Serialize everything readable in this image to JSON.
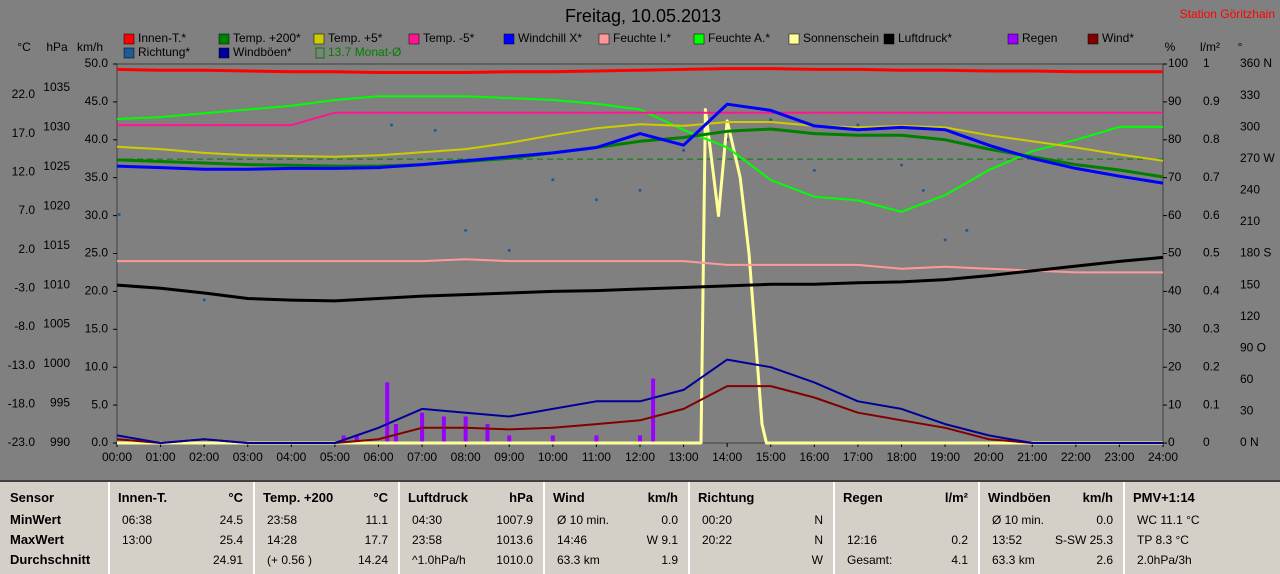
{
  "chart_data": {
    "type": "line",
    "title": "Freitag, 10.05.2013",
    "station": "Station Göritzhain",
    "xlim": [
      0,
      24
    ],
    "xticks": [
      {
        "value": 0,
        "label": "00:00"
      },
      {
        "value": 1,
        "label": "01:00"
      },
      {
        "value": 2,
        "label": "02:00"
      },
      {
        "value": 3,
        "label": "03:00"
      },
      {
        "value": 4,
        "label": "04:00"
      },
      {
        "value": 5,
        "label": "05:00"
      },
      {
        "value": 6,
        "label": "06:00"
      },
      {
        "value": 7,
        "label": "07:00"
      },
      {
        "value": 8,
        "label": "08:00"
      },
      {
        "value": 9,
        "label": "09:00"
      },
      {
        "value": 10,
        "label": "10:00"
      },
      {
        "value": 11,
        "label": "11:00"
      },
      {
        "value": 12,
        "label": "12:00"
      },
      {
        "value": 13,
        "label": "13:00"
      },
      {
        "value": 14,
        "label": "14:00"
      },
      {
        "value": 15,
        "label": "15:00"
      },
      {
        "value": 16,
        "label": "16:00"
      },
      {
        "value": 17,
        "label": "17:00"
      },
      {
        "value": 18,
        "label": "18:00"
      },
      {
        "value": 19,
        "label": "19:00"
      },
      {
        "value": 20,
        "label": "20:00"
      },
      {
        "value": 21,
        "label": "21:00"
      },
      {
        "value": 22,
        "label": "22:00"
      },
      {
        "value": 23,
        "label": "23:00"
      },
      {
        "value": 24,
        "label": "24:00"
      }
    ],
    "x": [
      0,
      1,
      2,
      3,
      4,
      5,
      6,
      7,
      8,
      9,
      10,
      11,
      12,
      13,
      14,
      15,
      16,
      17,
      18,
      19,
      20,
      21,
      22,
      23,
      24
    ],
    "axes": [
      {
        "label": "°C",
        "lim": [
          -23,
          26
        ],
        "ticks": [
          {
            "value": 22,
            "label": "22.0"
          },
          {
            "value": 17,
            "label": "17.0"
          },
          {
            "value": 12,
            "label": "12.0"
          },
          {
            "value": 7,
            "label": "7.0"
          },
          {
            "value": 2,
            "label": "2.0"
          },
          {
            "value": -3,
            "label": "-3.0"
          },
          {
            "value": -8,
            "label": "-8.0"
          },
          {
            "value": -13,
            "label": "-13.0"
          },
          {
            "value": -18,
            "label": "-18.0"
          },
          {
            "value": -23,
            "label": "-23.0"
          }
        ]
      },
      {
        "label": "hPa",
        "lim": [
          990,
          1038
        ],
        "ticks": [
          1035,
          1030,
          1025,
          1020,
          1015,
          1010,
          1005,
          1000,
          995,
          990
        ]
      },
      {
        "label": "km/h",
        "lim": [
          0,
          50
        ],
        "ticks": [
          {
            "value": 50,
            "label": "50.0"
          },
          {
            "value": 45,
            "label": "45.0"
          },
          {
            "value": 40,
            "label": "40.0"
          },
          {
            "value": 35,
            "label": "35.0"
          },
          {
            "value": 30,
            "label": "30.0"
          },
          {
            "value": 25,
            "label": "25.0"
          },
          {
            "value": 20,
            "label": "20.0"
          },
          {
            "value": 15,
            "label": "15.0"
          },
          {
            "value": 10,
            "label": "10.0"
          },
          {
            "value": 5,
            "label": "5.0"
          },
          {
            "value": 0,
            "label": "0.0"
          }
        ]
      },
      {
        "label": "%",
        "lim": [
          0,
          100
        ],
        "ticks": [
          100,
          90,
          80,
          70,
          60,
          50,
          40,
          30,
          20,
          10,
          0
        ]
      },
      {
        "label": "l/m²",
        "lim": [
          0,
          1
        ],
        "ticks": [
          1,
          0.9,
          0.8,
          0.7,
          0.6,
          0.5,
          0.4,
          0.3,
          0.2,
          0.1,
          0
        ]
      },
      {
        "label": "°",
        "lim": [
          0,
          360
        ],
        "ticks": [
          {
            "value": 360,
            "label": "360 N"
          },
          330,
          300,
          {
            "value": 270,
            "label": "270 W"
          },
          240,
          210,
          {
            "value": 180,
            "label": "180 S"
          },
          150,
          120,
          {
            "value": 90,
            "label": "90 O"
          },
          60,
          30,
          {
            "value": 0,
            "label": "0 N"
          }
        ]
      }
    ],
    "series": [
      {
        "name": "Innen-T.*",
        "color": "#ff0000",
        "axis": 0,
        "width": 3,
        "values": [
          25.3,
          25.2,
          25.2,
          25.1,
          25.0,
          25.0,
          24.9,
          24.9,
          24.9,
          25.0,
          25.0,
          25.1,
          25.2,
          25.3,
          25.4,
          25.4,
          25.3,
          25.3,
          25.2,
          25.2,
          25.1,
          25.1,
          25.0,
          25.0,
          25.0
        ]
      },
      {
        "name": "Temp. +200*",
        "color": "#008000",
        "axis": 0,
        "width": 3,
        "values": [
          13.6,
          13.4,
          13.2,
          13.0,
          12.9,
          12.8,
          12.8,
          13.0,
          13.4,
          13.8,
          14.5,
          15.2,
          16.0,
          16.5,
          17.3,
          17.6,
          17.0,
          16.8,
          16.8,
          16.2,
          15.0,
          14.0,
          13.0,
          12.3,
          11.4
        ]
      },
      {
        "name": "Temp. +5*",
        "color": "#cccc00",
        "axis": 0,
        "width": 2,
        "values": [
          15.3,
          15.0,
          14.5,
          14.2,
          14.1,
          14.0,
          14.2,
          14.6,
          15.0,
          15.8,
          16.8,
          17.7,
          18.2,
          18.0,
          18.5,
          18.5,
          18.0,
          17.8,
          18.0,
          17.8,
          16.8,
          16.0,
          15.2,
          14.3,
          13.5
        ]
      },
      {
        "name": "Temp. -5*",
        "color": "#ff1493",
        "axis": 0,
        "width": 2,
        "values": [
          18.1,
          18.1,
          18.1,
          18.1,
          18.1,
          19.7,
          19.7,
          19.7,
          19.7,
          19.7,
          19.7,
          19.7,
          19.7,
          19.7,
          19.7,
          19.7,
          19.7,
          19.7,
          19.7,
          19.7,
          19.7,
          19.7,
          19.7,
          19.7,
          19.7
        ]
      },
      {
        "name": "Windchill X*",
        "color": "#0000ff",
        "axis": 0,
        "width": 3,
        "values": [
          12.8,
          12.6,
          12.4,
          12.4,
          12.5,
          12.5,
          12.6,
          13.0,
          13.5,
          14.0,
          14.5,
          15.2,
          17.0,
          15.5,
          20.8,
          20.0,
          18.0,
          17.5,
          17.8,
          17.5,
          15.5,
          13.8,
          12.5,
          11.5,
          10.6
        ]
      },
      {
        "name": "Feuchte I.*",
        "color": "#ff9999",
        "axis": 3,
        "width": 2,
        "values": [
          48,
          48,
          48,
          48,
          48,
          48,
          48,
          48,
          48.5,
          48,
          48,
          48,
          48,
          48,
          47,
          47,
          47,
          47,
          46,
          46.5,
          46,
          45.5,
          45,
          45,
          45
        ]
      },
      {
        "name": "Feuchte A.*",
        "color": "#00ff00",
        "axis": 3,
        "width": 2,
        "values": [
          85.5,
          86,
          87,
          88,
          89,
          90.5,
          91.5,
          91.5,
          91.5,
          91,
          90.5,
          89.5,
          88,
          82.6,
          78,
          69.4,
          65,
          64,
          61,
          65.4,
          72,
          77,
          80,
          83.4,
          83.4
        ]
      },
      {
        "name": "Sonnenschein",
        "color": "#ffff99",
        "axis": 3,
        "width": 3,
        "x": [
          0,
          13.4,
          13.5,
          13.8,
          14.0,
          14.3,
          14.5,
          14.8,
          14.9,
          24
        ],
        "values": [
          0,
          0,
          88,
          60,
          85,
          70,
          50,
          5,
          0,
          0
        ]
      },
      {
        "name": "Luftdruck*",
        "color": "#000000",
        "axis": 1,
        "width": 3,
        "values": [
          1010.0,
          1009.6,
          1009.0,
          1008.3,
          1008.1,
          1008.0,
          1008.3,
          1008.6,
          1008.8,
          1009.0,
          1009.2,
          1009.3,
          1009.5,
          1009.7,
          1009.9,
          1010.1,
          1010.1,
          1010.3,
          1010.4,
          1010.7,
          1011.2,
          1011.8,
          1012.4,
          1013.0,
          1013.5
        ]
      },
      {
        "name": "Regen",
        "color": "#9900ff",
        "axis": 4,
        "kind": "bar",
        "x": [
          5.2,
          5.5,
          6.2,
          6.4,
          7.0,
          7.5,
          8.0,
          8.5,
          9.0,
          10.0,
          11.0,
          12.0,
          12.3
        ],
        "values": [
          0.02,
          0.02,
          0.16,
          0.05,
          0.08,
          0.07,
          0.07,
          0.05,
          0.02,
          0.02,
          0.02,
          0.02,
          0.17
        ]
      },
      {
        "name": "Wind*",
        "color": "#800000",
        "axis": 2,
        "width": 2,
        "values": [
          0.5,
          0,
          0.5,
          0,
          0,
          0,
          0.5,
          2,
          2,
          1.8,
          2,
          2.5,
          3,
          4.5,
          7.5,
          7.5,
          6,
          4,
          3,
          2,
          0.5,
          0,
          0,
          0,
          0
        ]
      },
      {
        "name": "Richtung*",
        "color": "#1e5a96",
        "axis": 5,
        "kind": "scatter",
        "x": [
          0.05,
          2.0,
          6.3,
          7.3,
          8.0,
          9.0,
          10.0,
          11.0,
          12.0,
          13.0,
          14.0,
          15.0,
          16.0,
          17.0,
          18.0,
          18.5,
          19.0,
          19.5
        ],
        "values": [
          217,
          136,
          302,
          297,
          202,
          183,
          250,
          231,
          240,
          278,
          288,
          307,
          259,
          302,
          264,
          240,
          193,
          202
        ]
      },
      {
        "name": "Windböen*",
        "color": "#000099",
        "axis": 2,
        "width": 2,
        "values": [
          1,
          0,
          0.5,
          0,
          0,
          0,
          2,
          4.5,
          4,
          3.5,
          4.5,
          5.5,
          5.5,
          7,
          11,
          10,
          8,
          5.5,
          4.5,
          2.5,
          1,
          0,
          0,
          0,
          0
        ]
      }
    ],
    "reference": {
      "label": "13.7 Monat-Ø",
      "value": 13.7,
      "axis": 0,
      "color": "#008000"
    }
  },
  "table": {
    "row_labels": [
      "Sensor",
      "MinWert",
      "MaxWert",
      "Durchschnitt"
    ],
    "columns": [
      {
        "header": "Innen-T.",
        "unit": "°C",
        "rows": [
          {
            "l": "06:38",
            "r": "24.5"
          },
          {
            "l": "13:00",
            "r": "25.4"
          },
          {
            "r": "24.91"
          }
        ]
      },
      {
        "header": "Temp. +200",
        "unit": "°C",
        "rows": [
          {
            "l": "23:58",
            "r": "11.1"
          },
          {
            "l": "14:28",
            "r": "17.7"
          },
          {
            "l": "(+ 0.56 )",
            "r": "14.24"
          }
        ]
      },
      {
        "header": "Luftdruck",
        "unit": "hPa",
        "rows": [
          {
            "l": "04:30",
            "r": "1007.9"
          },
          {
            "l": "23:58",
            "r": "1013.6"
          },
          {
            "l": "^1.0hPa/h",
            "r": "1010.0"
          }
        ]
      },
      {
        "header": "Wind",
        "unit": "km/h",
        "rows": [
          {
            "l": "Ø 10 min.",
            "r": "0.0"
          },
          {
            "l": "14:46",
            "r": "W 9.1"
          },
          {
            "l": "63.3 km",
            "r": "1.9"
          }
        ]
      },
      {
        "header": "Richtung",
        "rows": [
          {
            "l": "00:20",
            "r": "N"
          },
          {
            "l": "20:22",
            "r": "N"
          },
          {
            "r": "W"
          }
        ]
      },
      {
        "header": "Regen",
        "unit": "l/m²",
        "rows": [
          {},
          {
            "l": "12:16",
            "r": "0.2"
          },
          {
            "l": "Gesamt:",
            "r": "4.1"
          }
        ]
      },
      {
        "header": "Windböen",
        "unit": "km/h",
        "rows": [
          {
            "l": "Ø 10 min.",
            "r": "0.0"
          },
          {
            "l": "13:52",
            "r": "S-SW 25.3"
          },
          {
            "l": "63.3 km",
            "r": "2.6"
          }
        ]
      },
      {
        "header": "PMV+1:14",
        "rows": [
          {
            "l": "WC 11.1 °C"
          },
          {
            "l": "TP 8.3 °C"
          },
          {
            "l": "2.0hPa/3h"
          }
        ]
      }
    ]
  }
}
